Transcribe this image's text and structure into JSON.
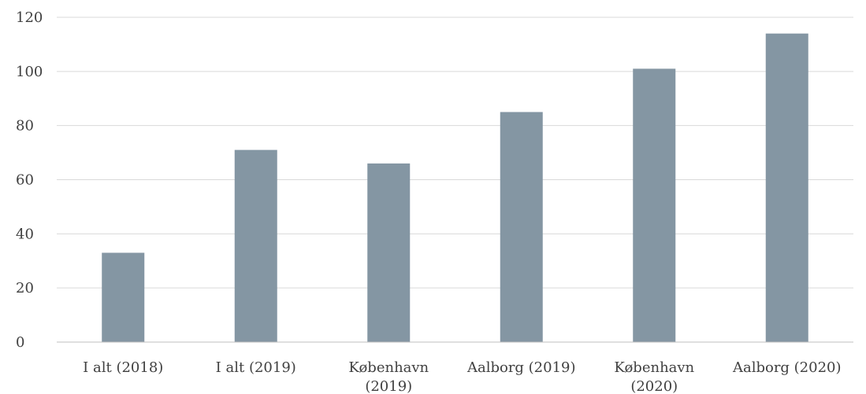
{
  "chart_data": {
    "type": "bar",
    "title": "",
    "xlabel": "",
    "ylabel": "",
    "categories": [
      [
        "I alt (2018)"
      ],
      [
        "I alt (2019)"
      ],
      [
        "København",
        "(2019)"
      ],
      [
        "Aalborg (2019)"
      ],
      [
        "København",
        "(2020)"
      ],
      [
        "Aalborg (2020)"
      ]
    ],
    "values": [
      33,
      71,
      66,
      85,
      101,
      114
    ],
    "ylim": [
      0,
      120
    ],
    "yticks": [
      0,
      20,
      40,
      60,
      80,
      100,
      120
    ],
    "grid": true,
    "legend": "none",
    "bar_color": "#8496a3"
  }
}
